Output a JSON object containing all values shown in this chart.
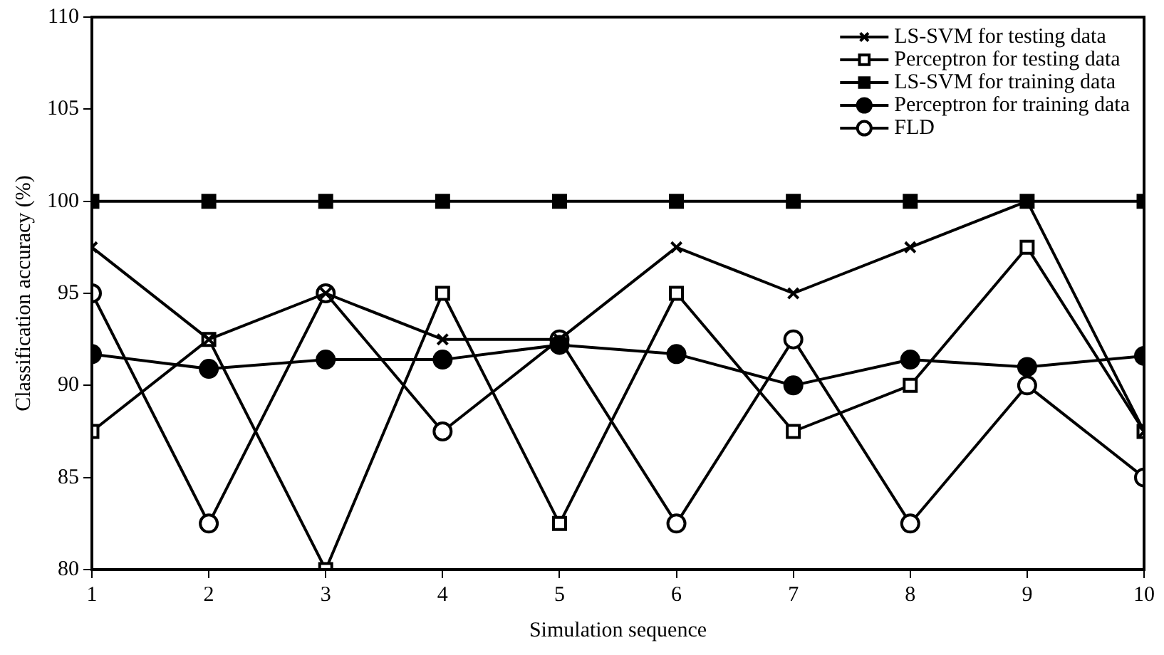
{
  "chart_data": {
    "type": "line",
    "xlabel": "Simulation sequence",
    "ylabel": "Classification accuracy (%)",
    "x": [
      1,
      2,
      3,
      4,
      5,
      6,
      7,
      8,
      9,
      10
    ],
    "xlim": [
      1,
      10
    ],
    "xticks": [
      1,
      2,
      3,
      4,
      5,
      6,
      7,
      8,
      9,
      10
    ],
    "ylim": [
      80,
      110
    ],
    "yticks": [
      80,
      85,
      90,
      95,
      100,
      105,
      110
    ],
    "grid": false,
    "legend": "top right",
    "line_style": "solid",
    "series": [
      {
        "name": "LS-SVM for testing data",
        "color": "#000000",
        "marker": "cross",
        "values": [
          97.5,
          92.5,
          95,
          92.5,
          92.5,
          97.5,
          95,
          97.5,
          100,
          87.5
        ]
      },
      {
        "name": "Perceptron for testing data",
        "color": "#000000",
        "marker": "square",
        "values": [
          87.5,
          92.5,
          80,
          95,
          82.5,
          95,
          87.5,
          90,
          97.5,
          87.5
        ]
      },
      {
        "name": "LS-SVM for training data",
        "color": "#000000",
        "marker": "square",
        "values": [
          100,
          100,
          100,
          100,
          100,
          100,
          100,
          100,
          100,
          100
        ]
      },
      {
        "name": "Perceptron for training data",
        "color": "#000000",
        "marker": "circle",
        "values": [
          91.7,
          90.9,
          91.4,
          91.4,
          92.2,
          91.7,
          90,
          91.4,
          91,
          91.6
        ]
      },
      {
        "name": "FLD",
        "color": "#000000",
        "marker": "circle",
        "values": [
          95,
          82.5,
          95,
          87.5,
          92.5,
          82.5,
          92.5,
          82.5,
          90,
          85
        ]
      }
    ]
  }
}
